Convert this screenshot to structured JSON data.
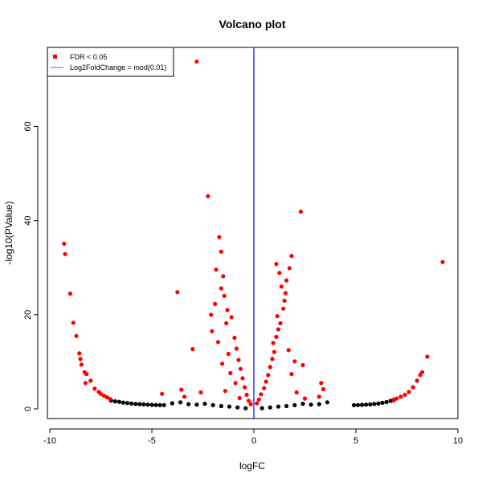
{
  "chart_data": {
    "type": "scatter",
    "title": "Volcano plot",
    "xlabel": "logFC",
    "ylabel": "-log10(PValue)",
    "xlim": [
      -10,
      10
    ],
    "ylim": [
      0,
      74
    ],
    "x_ticks": [
      -10,
      -5,
      0,
      5,
      10
    ],
    "y_ticks": [
      0,
      20,
      40,
      60
    ],
    "grid": false,
    "legend_position": "top-left",
    "legend": [
      {
        "label": "FDR < 0.05",
        "kind": "point",
        "color": "#ff0000"
      },
      {
        "label": "Log2FoldChange = mod(0.01)",
        "kind": "line",
        "color": "#6d7dff"
      }
    ],
    "vline": {
      "x": 0,
      "color": "#0000ff"
    },
    "series": [
      {
        "name": "FDR < 0.05",
        "color": "#ff0000",
        "points": [
          [
            -9.3,
            35.1
          ],
          [
            -9.25,
            32.9
          ],
          [
            -9.0,
            24.5
          ],
          [
            -8.85,
            18.3
          ],
          [
            -8.7,
            15.5
          ],
          [
            -8.55,
            11.8
          ],
          [
            -8.5,
            10.6
          ],
          [
            -8.45,
            9.4
          ],
          [
            -8.3,
            7.8
          ],
          [
            -8.2,
            7.4
          ],
          [
            -8.25,
            5.5
          ],
          [
            -8.0,
            6.0
          ],
          [
            -7.8,
            4.3
          ],
          [
            -7.6,
            3.6
          ],
          [
            -7.5,
            3.2
          ],
          [
            -7.35,
            2.8
          ],
          [
            -7.2,
            2.5
          ],
          [
            -7.05,
            2.1
          ],
          [
            -4.5,
            3.2
          ],
          [
            -3.75,
            24.8
          ],
          [
            -3.55,
            4.1
          ],
          [
            -3.4,
            2.6
          ],
          [
            -3.0,
            12.7
          ],
          [
            -2.8,
            73.8
          ],
          [
            -2.6,
            3.5
          ],
          [
            -2.25,
            45.2
          ],
          [
            -2.1,
            20.0
          ],
          [
            -1.7,
            36.5
          ],
          [
            -1.6,
            33.4
          ],
          [
            -1.85,
            29.6
          ],
          [
            -1.5,
            28.2
          ],
          [
            -1.6,
            25.6
          ],
          [
            -1.45,
            24.0
          ],
          [
            -1.9,
            22.3
          ],
          [
            -1.3,
            21.0
          ],
          [
            -1.1,
            19.5
          ],
          [
            -1.35,
            18.2
          ],
          [
            -2.05,
            16.5
          ],
          [
            -0.95,
            15.1
          ],
          [
            -1.75,
            14.2
          ],
          [
            -0.85,
            12.8
          ],
          [
            -1.25,
            11.7
          ],
          [
            -0.75,
            10.4
          ],
          [
            -1.55,
            9.6
          ],
          [
            -0.65,
            8.5
          ],
          [
            -1.15,
            7.6
          ],
          [
            -0.55,
            6.5
          ],
          [
            -0.9,
            5.5
          ],
          [
            -0.45,
            4.6
          ],
          [
            -1.4,
            3.8
          ],
          [
            -0.35,
            3.0
          ],
          [
            -0.7,
            2.3
          ],
          [
            -0.25,
            1.7
          ],
          [
            -0.15,
            1.0
          ],
          [
            0.15,
            1.2
          ],
          [
            0.25,
            2.0
          ],
          [
            0.35,
            3.1
          ],
          [
            0.5,
            4.4
          ],
          [
            0.6,
            5.8
          ],
          [
            0.7,
            7.2
          ],
          [
            0.8,
            8.9
          ],
          [
            0.9,
            10.6
          ],
          [
            1.0,
            12.1
          ],
          [
            0.95,
            14.0
          ],
          [
            1.1,
            15.3
          ],
          [
            1.2,
            16.9
          ],
          [
            1.3,
            18.2
          ],
          [
            1.15,
            19.7
          ],
          [
            1.45,
            21.3
          ],
          [
            1.5,
            23.0
          ],
          [
            1.55,
            24.6
          ],
          [
            1.35,
            26.0
          ],
          [
            1.6,
            27.3
          ],
          [
            1.25,
            28.9
          ],
          [
            1.75,
            29.9
          ],
          [
            1.1,
            30.8
          ],
          [
            1.85,
            32.5
          ],
          [
            2.3,
            41.9
          ],
          [
            2.4,
            9.3
          ],
          [
            1.7,
            12.5
          ],
          [
            2.0,
            10.1
          ],
          [
            1.85,
            7.4
          ],
          [
            2.1,
            3.5
          ],
          [
            2.5,
            2.2
          ],
          [
            3.3,
            5.5
          ],
          [
            3.4,
            4.2
          ],
          [
            3.2,
            2.6
          ],
          [
            6.85,
            2.0
          ],
          [
            7.0,
            2.2
          ],
          [
            7.2,
            2.6
          ],
          [
            7.4,
            3.0
          ],
          [
            7.6,
            3.6
          ],
          [
            7.8,
            4.6
          ],
          [
            8.0,
            6.0
          ],
          [
            8.15,
            7.2
          ],
          [
            8.25,
            7.8
          ],
          [
            8.5,
            11.1
          ],
          [
            9.25,
            31.2
          ]
        ]
      },
      {
        "name": "",
        "color": "#000000",
        "points": [
          [
            -7.0,
            1.8
          ],
          [
            -6.8,
            1.6
          ],
          [
            -6.6,
            1.5
          ],
          [
            -6.4,
            1.35
          ],
          [
            -6.2,
            1.25
          ],
          [
            -6.0,
            1.15
          ],
          [
            -5.8,
            1.05
          ],
          [
            -5.6,
            1.0
          ],
          [
            -5.4,
            0.95
          ],
          [
            -5.2,
            0.9
          ],
          [
            -5.0,
            0.85
          ],
          [
            -4.8,
            0.82
          ],
          [
            -4.6,
            0.8
          ],
          [
            -4.4,
            0.8
          ],
          [
            -4.0,
            1.2
          ],
          [
            -3.6,
            1.4
          ],
          [
            -3.2,
            1.0
          ],
          [
            -2.8,
            0.9
          ],
          [
            -2.4,
            1.1
          ],
          [
            -2.0,
            0.8
          ],
          [
            -1.6,
            0.6
          ],
          [
            -1.2,
            0.5
          ],
          [
            -0.8,
            0.3
          ],
          [
            -0.4,
            0.15
          ],
          [
            0.4,
            0.15
          ],
          [
            0.8,
            0.3
          ],
          [
            1.2,
            0.5
          ],
          [
            1.6,
            0.6
          ],
          [
            2.0,
            0.8
          ],
          [
            2.4,
            1.1
          ],
          [
            2.8,
            0.9
          ],
          [
            3.2,
            1.0
          ],
          [
            3.6,
            1.4
          ],
          [
            4.9,
            0.8
          ],
          [
            5.1,
            0.82
          ],
          [
            5.3,
            0.86
          ],
          [
            5.5,
            0.9
          ],
          [
            5.7,
            0.95
          ],
          [
            5.9,
            1.05
          ],
          [
            6.1,
            1.15
          ],
          [
            6.3,
            1.3
          ],
          [
            6.5,
            1.45
          ],
          [
            6.7,
            1.7
          ],
          [
            6.85,
            1.85
          ]
        ]
      }
    ]
  }
}
